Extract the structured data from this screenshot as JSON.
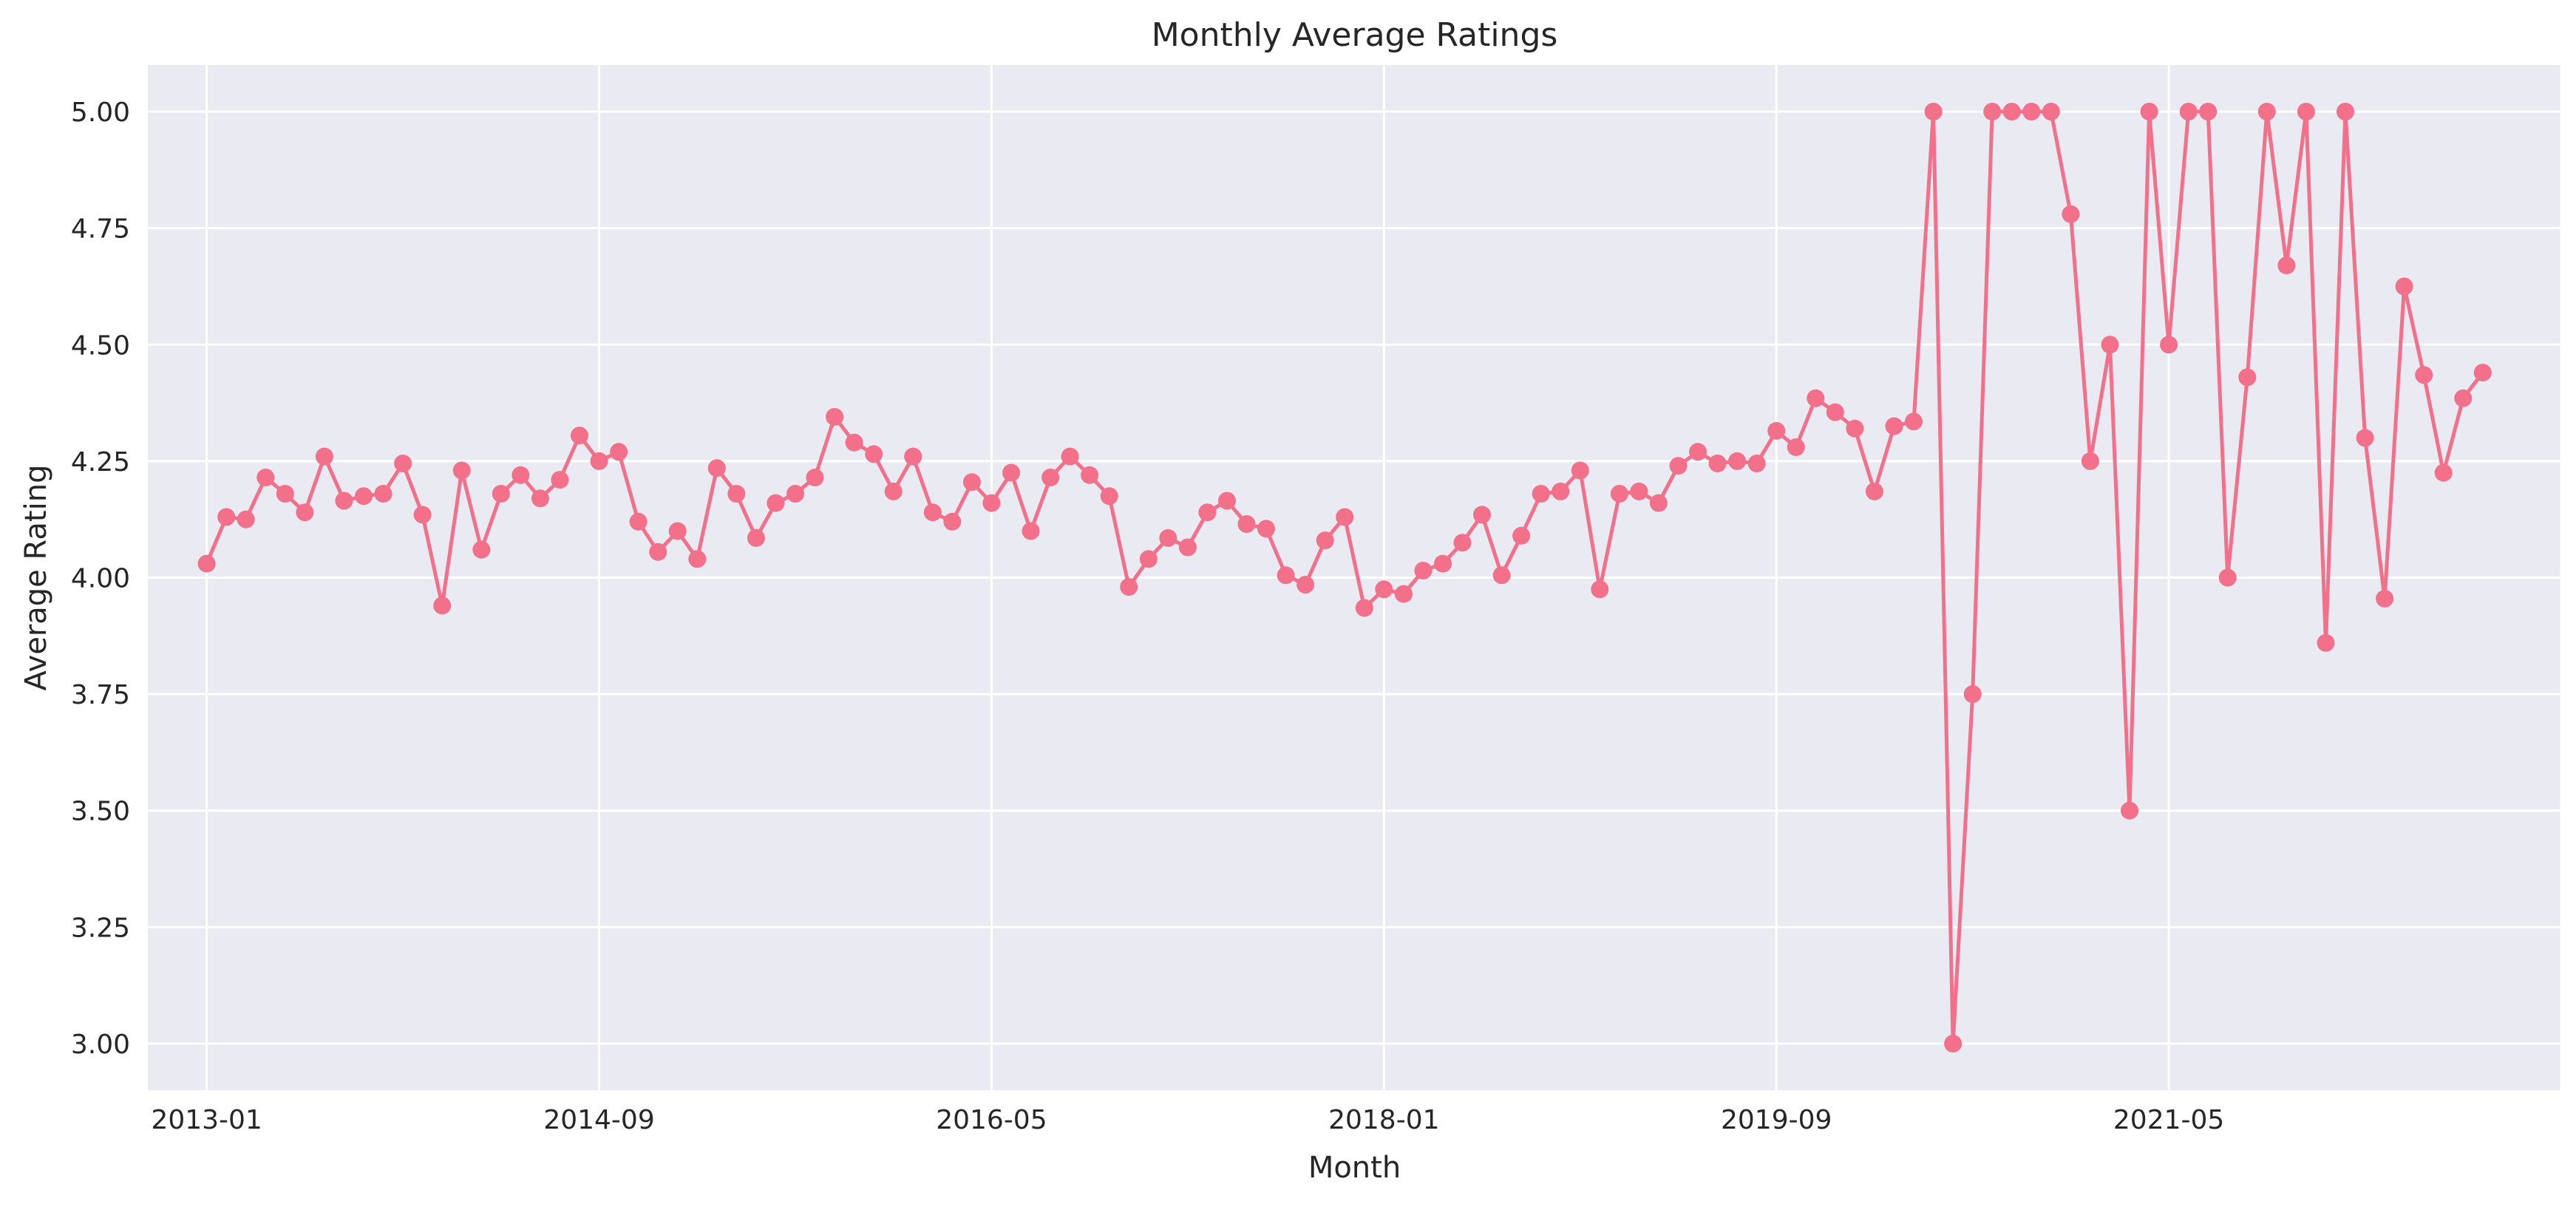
{
  "chart_data": {
    "type": "line",
    "title": "Monthly Average Ratings",
    "xlabel": "Month",
    "ylabel": "Average Rating",
    "ylim": [
      2.9,
      5.1
    ],
    "xlim": [
      "2012-10",
      "2023-01"
    ],
    "grid": true,
    "legend": "none",
    "colors": {
      "background": "#EAEAF2",
      "grid": "#FFFFFF",
      "line": "#F2708A",
      "text": "#262626"
    },
    "x_ticks": [
      "2013-01",
      "2014-09",
      "2016-05",
      "2018-01",
      "2019-09",
      "2021-05"
    ],
    "y_ticks": [
      "3.00",
      "3.25",
      "3.50",
      "3.75",
      "4.00",
      "4.25",
      "4.50",
      "4.75",
      "5.00"
    ],
    "start_month": "2013-01",
    "series": [
      {
        "values": [
          4.03,
          4.13,
          4.125,
          4.215,
          4.18,
          4.14,
          4.26,
          4.165,
          4.175,
          4.18,
          4.245,
          4.135,
          3.94,
          4.23,
          4.06,
          4.18,
          4.22,
          4.17,
          4.21,
          4.305,
          4.25,
          4.27,
          4.12,
          4.055,
          4.1,
          4.04,
          4.235,
          4.18,
          4.085,
          4.16,
          4.18,
          4.215,
          4.345,
          4.29,
          4.265,
          4.185,
          4.26,
          4.14,
          4.12,
          4.205,
          4.16,
          4.225,
          4.1,
          4.215,
          4.26,
          4.22,
          4.175,
          3.98,
          4.04,
          4.085,
          4.065,
          4.14,
          4.165,
          4.115,
          4.105,
          4.005,
          3.985,
          4.08,
          4.13,
          3.935,
          3.975,
          3.965,
          4.015,
          4.03,
          4.075,
          4.135,
          4.005,
          4.09,
          4.18,
          4.185,
          4.23,
          3.975,
          4.18,
          4.185,
          4.16,
          4.24,
          4.27,
          4.245,
          4.25,
          4.245,
          4.315,
          4.28,
          4.385,
          4.355,
          4.32,
          4.185,
          4.325,
          4.335,
          5.0,
          3.0,
          3.75,
          5.0,
          5.0,
          5.0,
          5.0,
          4.78,
          4.25,
          4.5,
          3.5,
          5.0,
          4.5,
          5.0,
          5.0,
          4.0,
          4.43,
          5.0,
          4.67,
          5.0,
          3.86,
          5.0,
          4.3,
          3.955,
          4.625,
          4.435,
          4.225,
          4.385,
          4.44
        ]
      }
    ]
  }
}
